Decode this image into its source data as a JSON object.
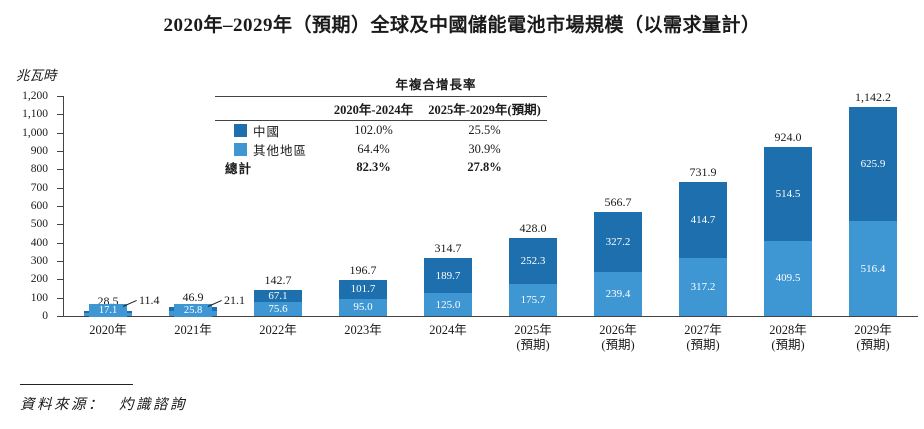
{
  "title": "2020年–2029年（預期）全球及中國儲能電池市場規模（以需求量計）",
  "y_axis": {
    "unit": "兆瓦時",
    "ticks": [
      "0",
      "100",
      "200",
      "300",
      "400",
      "500",
      "600",
      "700",
      "800",
      "900",
      "1,000",
      "1,100",
      "1,200"
    ]
  },
  "cagr_table": {
    "header": "年複合增長率",
    "col1": "2020年-2024年",
    "col2": "2025年-2029年(預期)",
    "rows": [
      {
        "label": "中國",
        "swatch": "#1e6fad",
        "v1": "102.0%",
        "v2": "25.5%",
        "bold": false
      },
      {
        "label": "其他地區",
        "swatch": "#3e96d2",
        "v1": "64.4%",
        "v2": "30.9%",
        "bold": false
      },
      {
        "label": "總計",
        "swatch": "",
        "v1": "82.3%",
        "v2": "27.8%",
        "bold": true
      }
    ]
  },
  "chart_data": {
    "type": "bar",
    "stacked": true,
    "title": "2020年–2029年（預期）全球及中國儲能電池市場規模（以需求量計）",
    "ylabel": "兆瓦時",
    "xlabel": "",
    "ylim": [
      0,
      1200
    ],
    "ytick_step": 100,
    "grid": false,
    "legend_position": "table-top-center",
    "categories": [
      "2020年",
      "2021年",
      "2022年",
      "2023年",
      "2024年",
      "2025年\n(預期)",
      "2026年\n(預期)",
      "2027年\n(預期)",
      "2028年\n(預期)",
      "2029年\n(預期)"
    ],
    "series": [
      {
        "name": "其他地區",
        "color": "#3e96d2",
        "values": [
          17.1,
          25.8,
          75.6,
          95.0,
          125.0,
          175.7,
          239.4,
          317.2,
          409.5,
          516.4
        ]
      },
      {
        "name": "中國",
        "color": "#1e6fad",
        "values": [
          11.4,
          21.1,
          67.1,
          101.7,
          189.7,
          252.3,
          327.2,
          414.7,
          514.5,
          625.9
        ]
      }
    ],
    "totals": [
      28.5,
      46.9,
      142.7,
      196.7,
      314.7,
      428.0,
      566.7,
      731.9,
      924.0,
      1142.2
    ]
  },
  "colors": {
    "china": "#1e6fad",
    "other": "#3e96d2",
    "axis": "#444444",
    "text": "#1a1a1a"
  },
  "source": {
    "label": "資料來源：",
    "value": "灼識諮詢"
  }
}
